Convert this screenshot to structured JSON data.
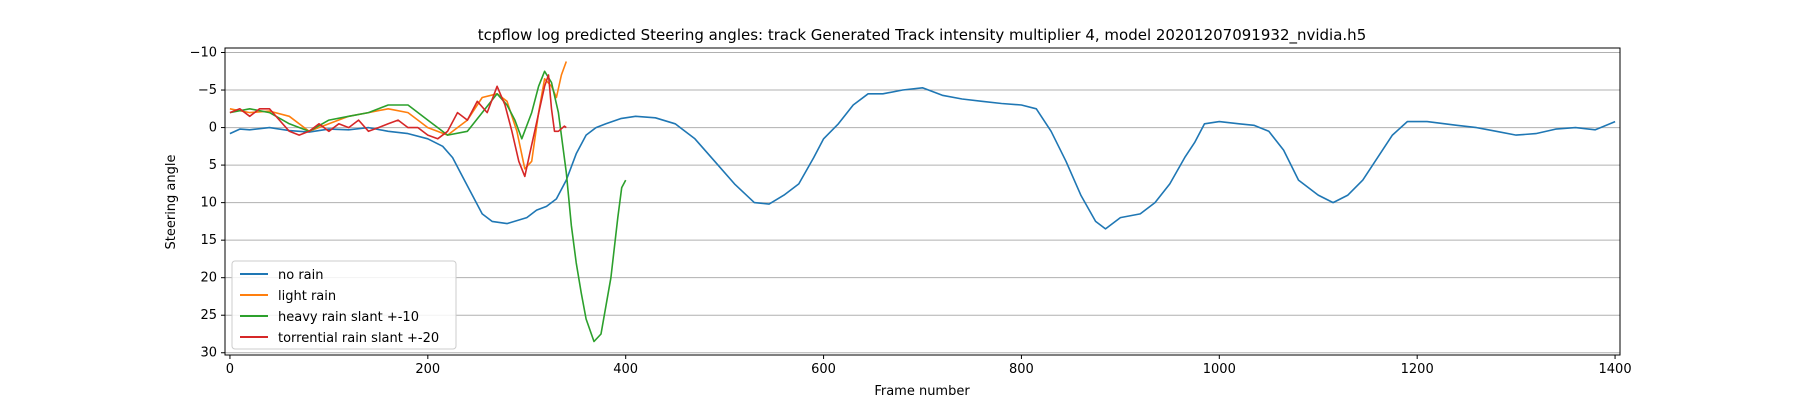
{
  "chart_data": {
    "type": "line",
    "title": "tcpflow log predicted Steering angles: track Generated Track intensity multiplier 4, model 20201207091932_nvidia.h5",
    "xlabel": "Frame number",
    "ylabel": "Steering angle",
    "xlim": [
      -5,
      1405
    ],
    "ylim": [
      30.3,
      -10.6
    ],
    "y_inverted": true,
    "grid": "horizontal",
    "legend_position": "lower-left",
    "xticks": [
      0,
      200,
      400,
      600,
      800,
      1000,
      1200,
      1400
    ],
    "xtick_labels": [
      "0",
      "200",
      "400",
      "600",
      "800",
      "1000",
      "1200",
      "1400"
    ],
    "yticks": [
      -10,
      -5,
      0,
      5,
      10,
      15,
      20,
      25,
      30
    ],
    "ytick_labels": [
      "−10",
      "−5",
      "0",
      "5",
      "10",
      "15",
      "20",
      "25",
      "30"
    ],
    "series": [
      {
        "name": "no rain",
        "color": "#1f77b4",
        "points": [
          [
            0,
            0.8
          ],
          [
            10,
            0.2
          ],
          [
            20,
            0.3
          ],
          [
            40,
            0.0
          ],
          [
            60,
            0.4
          ],
          [
            80,
            0.6
          ],
          [
            100,
            0.2
          ],
          [
            120,
            0.3
          ],
          [
            140,
            0.0
          ],
          [
            160,
            0.5
          ],
          [
            180,
            0.8
          ],
          [
            200,
            1.5
          ],
          [
            215,
            2.5
          ],
          [
            225,
            4.0
          ],
          [
            235,
            6.5
          ],
          [
            245,
            9.0
          ],
          [
            255,
            11.5
          ],
          [
            265,
            12.5
          ],
          [
            280,
            12.8
          ],
          [
            300,
            12.0
          ],
          [
            310,
            11.0
          ],
          [
            320,
            10.5
          ],
          [
            330,
            9.5
          ],
          [
            340,
            7.0
          ],
          [
            350,
            3.5
          ],
          [
            360,
            1.0
          ],
          [
            370,
            0.0
          ],
          [
            380,
            -0.5
          ],
          [
            395,
            -1.2
          ],
          [
            410,
            -1.5
          ],
          [
            430,
            -1.3
          ],
          [
            450,
            -0.5
          ],
          [
            470,
            1.5
          ],
          [
            490,
            4.5
          ],
          [
            510,
            7.5
          ],
          [
            530,
            10.0
          ],
          [
            545,
            10.2
          ],
          [
            560,
            9.0
          ],
          [
            575,
            7.5
          ],
          [
            590,
            4.0
          ],
          [
            600,
            1.5
          ],
          [
            615,
            -0.5
          ],
          [
            630,
            -3.0
          ],
          [
            645,
            -4.5
          ],
          [
            660,
            -4.5
          ],
          [
            680,
            -5.0
          ],
          [
            700,
            -5.3
          ],
          [
            720,
            -4.3
          ],
          [
            740,
            -3.8
          ],
          [
            760,
            -3.5
          ],
          [
            780,
            -3.2
          ],
          [
            800,
            -3.0
          ],
          [
            815,
            -2.5
          ],
          [
            830,
            0.5
          ],
          [
            845,
            4.5
          ],
          [
            860,
            9.0
          ],
          [
            875,
            12.5
          ],
          [
            885,
            13.5
          ],
          [
            900,
            12.0
          ],
          [
            920,
            11.5
          ],
          [
            935,
            10.0
          ],
          [
            950,
            7.5
          ],
          [
            965,
            4.0
          ],
          [
            975,
            2.0
          ],
          [
            985,
            -0.5
          ],
          [
            1000,
            -0.8
          ],
          [
            1020,
            -0.5
          ],
          [
            1035,
            -0.3
          ],
          [
            1050,
            0.5
          ],
          [
            1065,
            3.0
          ],
          [
            1080,
            7.0
          ],
          [
            1100,
            9.0
          ],
          [
            1115,
            10.0
          ],
          [
            1130,
            9.0
          ],
          [
            1145,
            7.0
          ],
          [
            1160,
            4.0
          ],
          [
            1175,
            1.0
          ],
          [
            1190,
            -0.8
          ],
          [
            1210,
            -0.8
          ],
          [
            1240,
            -0.3
          ],
          [
            1260,
            0.0
          ],
          [
            1280,
            0.5
          ],
          [
            1300,
            1.0
          ],
          [
            1320,
            0.8
          ],
          [
            1340,
            0.2
          ],
          [
            1360,
            0.0
          ],
          [
            1380,
            0.3
          ],
          [
            1400,
            -0.8
          ]
        ]
      },
      {
        "name": "light rain",
        "color": "#ff7f0e",
        "points": [
          [
            0,
            -2.5
          ],
          [
            20,
            -2.0
          ],
          [
            40,
            -2.2
          ],
          [
            60,
            -1.5
          ],
          [
            80,
            0.5
          ],
          [
            100,
            -0.5
          ],
          [
            120,
            -1.5
          ],
          [
            140,
            -2.0
          ],
          [
            160,
            -2.5
          ],
          [
            180,
            -2.0
          ],
          [
            200,
            0.0
          ],
          [
            220,
            1.0
          ],
          [
            240,
            -1.0
          ],
          [
            255,
            -4.0
          ],
          [
            270,
            -4.5
          ],
          [
            280,
            -3.5
          ],
          [
            290,
            0.5
          ],
          [
            298,
            5.5
          ],
          [
            305,
            4.5
          ],
          [
            312,
            -2.0
          ],
          [
            318,
            -6.5
          ],
          [
            325,
            -5.5
          ],
          [
            330,
            -4.0
          ],
          [
            335,
            -7.0
          ],
          [
            340,
            -8.8
          ]
        ]
      },
      {
        "name": "heavy rain slant +-10",
        "color": "#2ca02c",
        "points": [
          [
            0,
            -2.0
          ],
          [
            20,
            -2.5
          ],
          [
            40,
            -2.0
          ],
          [
            60,
            -0.5
          ],
          [
            80,
            0.5
          ],
          [
            100,
            -1.0
          ],
          [
            120,
            -1.5
          ],
          [
            140,
            -2.0
          ],
          [
            160,
            -3.0
          ],
          [
            180,
            -3.0
          ],
          [
            200,
            -1.0
          ],
          [
            220,
            1.0
          ],
          [
            240,
            0.5
          ],
          [
            255,
            -2.0
          ],
          [
            270,
            -4.5
          ],
          [
            280,
            -3.0
          ],
          [
            288,
            -1.0
          ],
          [
            295,
            1.5
          ],
          [
            305,
            -2.0
          ],
          [
            312,
            -5.5
          ],
          [
            318,
            -7.5
          ],
          [
            325,
            -6.0
          ],
          [
            332,
            -2.0
          ],
          [
            340,
            6.0
          ],
          [
            345,
            13.0
          ],
          [
            350,
            18.0
          ],
          [
            355,
            22.0
          ],
          [
            360,
            25.5
          ],
          [
            368,
            28.5
          ],
          [
            375,
            27.5
          ],
          [
            385,
            20.0
          ],
          [
            392,
            12.0
          ],
          [
            396,
            8.0
          ],
          [
            400,
            7.0
          ]
        ]
      },
      {
        "name": "torrential rain slant +-20",
        "color": "#d62728",
        "points": [
          [
            0,
            -2.0
          ],
          [
            10,
            -2.5
          ],
          [
            20,
            -1.5
          ],
          [
            30,
            -2.5
          ],
          [
            40,
            -2.5
          ],
          [
            50,
            -1.0
          ],
          [
            60,
            0.5
          ],
          [
            70,
            1.0
          ],
          [
            80,
            0.5
          ],
          [
            90,
            -0.5
          ],
          [
            100,
            0.5
          ],
          [
            110,
            -0.5
          ],
          [
            120,
            0.0
          ],
          [
            130,
            -1.0
          ],
          [
            140,
            0.5
          ],
          [
            150,
            0.0
          ],
          [
            160,
            -0.5
          ],
          [
            170,
            -1.0
          ],
          [
            180,
            0.0
          ],
          [
            190,
            0.0
          ],
          [
            200,
            1.0
          ],
          [
            210,
            1.5
          ],
          [
            220,
            0.5
          ],
          [
            230,
            -2.0
          ],
          [
            240,
            -1.0
          ],
          [
            250,
            -3.5
          ],
          [
            260,
            -2.0
          ],
          [
            270,
            -5.5
          ],
          [
            278,
            -3.0
          ],
          [
            285,
            0.5
          ],
          [
            292,
            4.5
          ],
          [
            298,
            6.5
          ],
          [
            303,
            3.5
          ],
          [
            308,
            0.5
          ],
          [
            313,
            -2.5
          ],
          [
            318,
            -5.5
          ],
          [
            322,
            -7.0
          ],
          [
            325,
            -2.5
          ],
          [
            328,
            0.5
          ],
          [
            332,
            0.5
          ],
          [
            338,
            -0.2
          ],
          [
            340,
            0.0
          ]
        ]
      }
    ]
  }
}
